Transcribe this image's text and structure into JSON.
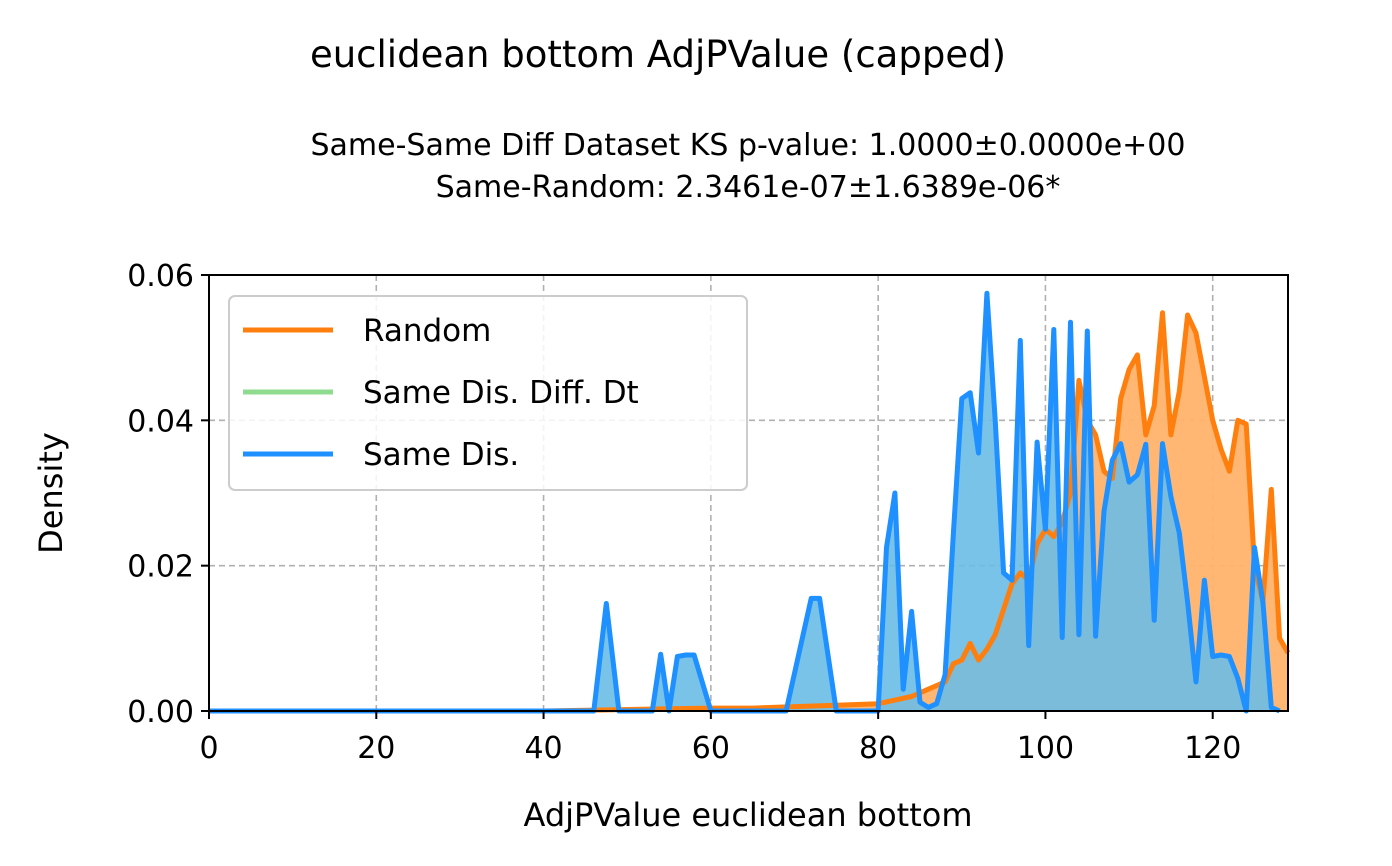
{
  "figure": {
    "title": "euclidean bottom AdjPValue (capped)",
    "subtitle_lines": [
      "Same-Same Diff Dataset  KS p-value: 1.0000±0.0000e+00",
      "Same-Random: 2.3461e-07±1.6389e-06*"
    ]
  },
  "chart_data": {
    "type": "area",
    "xlabel": "AdjPValue euclidean bottom",
    "ylabel": "Density",
    "xlim": [
      0,
      129
    ],
    "ylim": [
      0,
      0.06
    ],
    "x_ticks": [
      0,
      20,
      40,
      60,
      80,
      100,
      120
    ],
    "y_ticks": [
      0.0,
      0.02,
      0.04,
      0.06
    ],
    "x_tick_labels": [
      "0",
      "20",
      "40",
      "60",
      "80",
      "100",
      "120"
    ],
    "y_tick_labels": [
      "0.00",
      "0.02",
      "0.04",
      "0.06"
    ],
    "grid": true,
    "legend_position": "upper-left",
    "series": [
      {
        "name": "Random",
        "color": "#ff7f0e",
        "fill": "#ffb36b",
        "x": [
          0,
          40,
          55,
          60,
          65,
          70,
          75,
          80,
          82,
          84,
          86,
          88,
          89,
          90,
          91,
          92,
          93,
          94,
          95,
          96,
          97,
          98,
          99,
          100,
          101,
          102,
          103,
          104,
          105,
          106,
          107,
          108,
          109,
          110,
          111,
          112,
          113,
          114,
          115,
          116,
          117,
          118,
          119,
          120,
          121,
          122,
          123,
          124,
          125,
          126,
          127,
          128,
          129
        ],
        "y": [
          0.0,
          0.0,
          0.0003,
          0.0004,
          0.0004,
          0.0006,
          0.0008,
          0.001,
          0.0015,
          0.002,
          0.003,
          0.004,
          0.0065,
          0.007,
          0.0093,
          0.007,
          0.0085,
          0.0105,
          0.014,
          0.0175,
          0.019,
          0.018,
          0.023,
          0.025,
          0.024,
          0.026,
          0.03,
          0.0455,
          0.04,
          0.038,
          0.033,
          0.032,
          0.043,
          0.047,
          0.049,
          0.038,
          0.042,
          0.0548,
          0.038,
          0.044,
          0.0545,
          0.052,
          0.046,
          0.04,
          0.036,
          0.033,
          0.04,
          0.0395,
          0.02,
          0.015,
          0.0305,
          0.01,
          0.008
        ]
      },
      {
        "name": "Same Dis. Diff. Dt",
        "color": "#8fdc91",
        "fill": "#8fdc91",
        "x": [],
        "y": []
      },
      {
        "name": "Same Dis.",
        "color": "#1e90ff",
        "fill": "#6bbce6",
        "x": [
          0,
          46,
          47.5,
          49,
          53,
          54,
          55,
          56,
          57,
          58,
          60,
          69,
          72,
          73,
          75,
          80,
          81,
          82,
          83,
          84,
          85,
          86,
          87,
          88,
          89,
          90,
          91,
          92,
          93,
          94,
          95,
          96,
          97,
          98,
          99,
          100,
          101,
          102,
          103,
          104,
          105,
          106,
          107,
          108,
          109,
          110,
          111,
          112,
          113,
          114,
          115,
          116,
          117,
          118,
          119,
          120,
          121,
          122,
          123,
          124,
          125,
          126,
          127,
          128
        ],
        "y": [
          0.0,
          0.0,
          0.0148,
          0.0,
          0.0,
          0.0078,
          0.0,
          0.0075,
          0.0077,
          0.0077,
          0.0,
          0.0,
          0.0155,
          0.0155,
          0.0,
          0.0,
          0.0225,
          0.03,
          0.003,
          0.0137,
          0.0012,
          0.0005,
          0.001,
          0.005,
          0.0245,
          0.043,
          0.0438,
          0.0355,
          0.0575,
          0.04,
          0.019,
          0.018,
          0.051,
          0.009,
          0.037,
          0.025,
          0.0525,
          0.0101,
          0.0535,
          0.0105,
          0.0523,
          0.0103,
          0.0275,
          0.0345,
          0.0368,
          0.0315,
          0.0325,
          0.0367,
          0.0125,
          0.0368,
          0.0295,
          0.0245,
          0.015,
          0.004,
          0.018,
          0.0075,
          0.0077,
          0.0075,
          0.0045,
          0.0,
          0.0225,
          0.015,
          0.0005,
          0.0
        ]
      }
    ]
  }
}
